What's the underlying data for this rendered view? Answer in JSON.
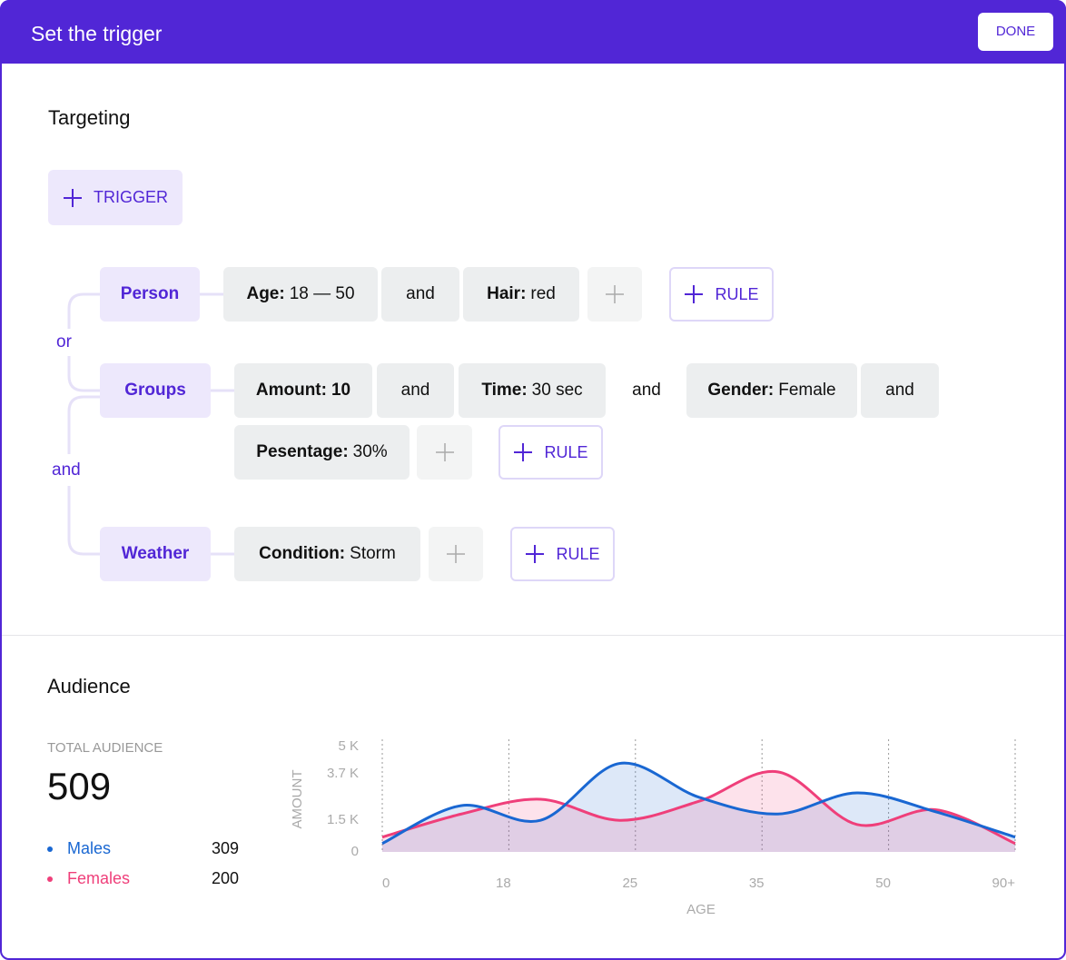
{
  "header": {
    "title": "Set the trigger",
    "button": "DONE"
  },
  "targeting": {
    "title": "Targeting",
    "add_trigger": "TRIGGER",
    "rule_button": "RULE",
    "connectors": [
      "or",
      "and"
    ],
    "groups": [
      {
        "name": "Person",
        "rules": [
          {
            "key": "Age:",
            "value": "18 — 50"
          },
          {
            "op": "and"
          },
          {
            "key": "Hair:",
            "value": "red"
          }
        ]
      },
      {
        "name": "Groups",
        "rules": [
          {
            "key": "Amount:",
            "value": "10"
          },
          {
            "op": "and"
          },
          {
            "key": "Time:",
            "value": "30 sec"
          },
          {
            "op": "and"
          },
          {
            "key": "Gender:",
            "value": "Female"
          },
          {
            "op": "and"
          },
          {
            "key": "Pesentage:",
            "value": "30%"
          }
        ]
      },
      {
        "name": "Weather",
        "rules": [
          {
            "key": "Condition:",
            "value": "Storm"
          }
        ]
      }
    ]
  },
  "audience": {
    "title": "Audience",
    "total_label": "TOTAL AUDIENCE",
    "total": 509,
    "counts": [
      309,
      200
    ]
  },
  "chart_data": {
    "type": "area",
    "xlabel": "AGE",
    "ylabel": "AMOUNT",
    "x": [
      0,
      0.625,
      1.25,
      1.875,
      2.5,
      3.125,
      3.75,
      4.375,
      5
    ],
    "xlim": [
      0,
      5
    ],
    "xticks": [
      0,
      {
        "value": 1,
        "label": "18"
      },
      {
        "value": 2,
        "label": "25"
      },
      {
        "value": 3,
        "label": "35"
      },
      {
        "value": 4,
        "label": "50"
      },
      {
        "value": 5,
        "label": "90+"
      }
    ],
    "ylim": [
      0,
      5000
    ],
    "yticks": [
      0,
      {
        "value": 1500,
        "label": "1.5 K"
      },
      {
        "value": 3700,
        "label": "3.7 K"
      },
      {
        "value": 5000,
        "label": "5 K"
      }
    ],
    "grid": "x",
    "series": [
      {
        "name": "Males",
        "color": "#1967d2",
        "values": [
          400,
          2200,
          1500,
          4200,
          2600,
          1800,
          2800,
          1900,
          700
        ]
      },
      {
        "name": "Females",
        "color": "#ef3f7a",
        "values": [
          700,
          1800,
          2500,
          1500,
          2400,
          3800,
          1300,
          2000,
          400
        ]
      }
    ]
  }
}
